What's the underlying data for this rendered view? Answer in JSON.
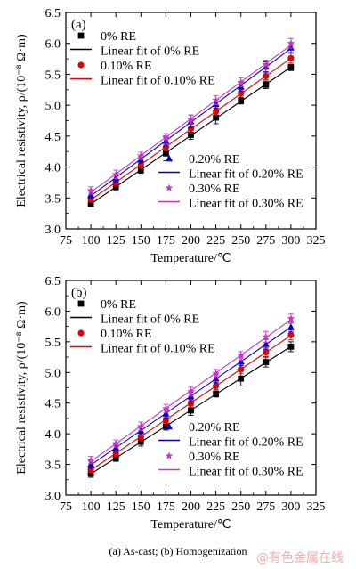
{
  "caption": "(a)  As-cast;  (b) Homogenization",
  "watermark": "@有色金属在线",
  "chart_data": [
    {
      "type": "scatter",
      "panel_label": "(a)",
      "xlabel": "Temperature/℃",
      "ylabel": "Electrical resistivity, ρ/(10⁻⁸ Ω·m)",
      "xlim": [
        75,
        325
      ],
      "ylim": [
        3.0,
        6.5
      ],
      "xticks": [
        "75",
        "100",
        "125",
        "150",
        "175",
        "200",
        "225",
        "250",
        "275",
        "300",
        "325"
      ],
      "yticks": [
        "3.0",
        "3.5",
        "4.0",
        "4.5",
        "5.0",
        "5.5",
        "6.0",
        "6.5"
      ],
      "x": [
        100,
        125,
        150,
        175,
        200,
        225,
        250,
        275,
        300
      ],
      "series": [
        {
          "name": "0% RE",
          "fit_name": "Linear fit of 0% RE",
          "color": "#000000",
          "marker": "square",
          "values": [
            3.4,
            3.68,
            3.95,
            4.22,
            4.52,
            4.8,
            5.07,
            5.33,
            5.61
          ],
          "errors": [
            0.04,
            0.05,
            0.05,
            0.12,
            0.07,
            0.1,
            0.05,
            0.06,
            0.05
          ]
        },
        {
          "name": "0.10% RE",
          "fit_name": "Linear fit of 0.10% RE",
          "color": "#e60000",
          "marker": "circle",
          "values": [
            3.48,
            3.75,
            4.03,
            4.32,
            4.62,
            4.9,
            5.19,
            5.47,
            5.76
          ],
          "errors": [
            0.05,
            0.05,
            0.05,
            0.06,
            0.07,
            0.06,
            0.06,
            0.06,
            0.08
          ]
        },
        {
          "name": "0.20% RE",
          "fit_name": "Linear fit of 0.20% RE",
          "color": "#0000cc",
          "marker": "triangle",
          "values": [
            3.55,
            3.82,
            4.12,
            4.42,
            4.74,
            5.02,
            5.3,
            5.62,
            5.93
          ],
          "errors": [
            0.06,
            0.07,
            0.06,
            0.08,
            0.1,
            0.07,
            0.07,
            0.08,
            0.08
          ]
        },
        {
          "name": "0.30% RE",
          "fit_name": "Linear fit of 0.30% RE",
          "color": "#cc33cc",
          "marker": "star",
          "values": [
            3.62,
            3.88,
            4.18,
            4.47,
            4.77,
            5.08,
            5.37,
            5.66,
            6.0
          ],
          "errors": [
            0.06,
            0.07,
            0.06,
            0.07,
            0.07,
            0.07,
            0.07,
            0.07,
            0.08
          ]
        }
      ]
    },
    {
      "type": "scatter",
      "panel_label": "(b)",
      "xlabel": "Temperature/℃",
      "ylabel": "Electrical resistivity, ρ/(10⁻⁸ Ω·m)",
      "xlim": [
        75,
        325
      ],
      "ylim": [
        3.0,
        6.5
      ],
      "xticks": [
        "75",
        "100",
        "125",
        "150",
        "175",
        "200",
        "225",
        "250",
        "275",
        "300",
        "325"
      ],
      "yticks": [
        "3.0",
        "3.5",
        "4.0",
        "4.5",
        "5.0",
        "5.5",
        "6.0",
        "6.5"
      ],
      "x": [
        100,
        125,
        150,
        175,
        200,
        225,
        250,
        275,
        300
      ],
      "series": [
        {
          "name": "0% RE",
          "fit_name": "Linear fit of 0% RE",
          "color": "#000000",
          "marker": "square",
          "values": [
            3.35,
            3.6,
            3.87,
            4.12,
            4.38,
            4.65,
            4.9,
            5.17,
            5.42
          ],
          "errors": [
            0.06,
            0.05,
            0.07,
            0.06,
            0.08,
            0.05,
            0.12,
            0.08,
            0.08
          ]
        },
        {
          "name": "0.10% RE",
          "fit_name": "Linear fit of 0.10% RE",
          "color": "#e60000",
          "marker": "circle",
          "values": [
            3.42,
            3.68,
            3.95,
            4.22,
            4.5,
            4.78,
            5.05,
            5.33,
            5.61
          ],
          "errors": [
            0.05,
            0.05,
            0.06,
            0.06,
            0.06,
            0.06,
            0.07,
            0.07,
            0.08
          ]
        },
        {
          "name": "0.20% RE",
          "fit_name": "Linear fit of 0.20% RE",
          "color": "#0000cc",
          "marker": "triangle",
          "values": [
            3.5,
            3.77,
            4.05,
            4.33,
            4.61,
            4.9,
            5.18,
            5.46,
            5.74
          ],
          "errors": [
            0.06,
            0.06,
            0.06,
            0.07,
            0.07,
            0.07,
            0.07,
            0.08,
            0.08
          ]
        },
        {
          "name": "0.30% RE",
          "fit_name": "Linear fit of 0.30% RE",
          "color": "#cc33cc",
          "marker": "star",
          "values": [
            3.57,
            3.84,
            4.12,
            4.41,
            4.69,
            4.98,
            5.27,
            5.58,
            5.88
          ],
          "errors": [
            0.06,
            0.06,
            0.07,
            0.07,
            0.07,
            0.07,
            0.07,
            0.09,
            0.08
          ]
        }
      ]
    }
  ]
}
